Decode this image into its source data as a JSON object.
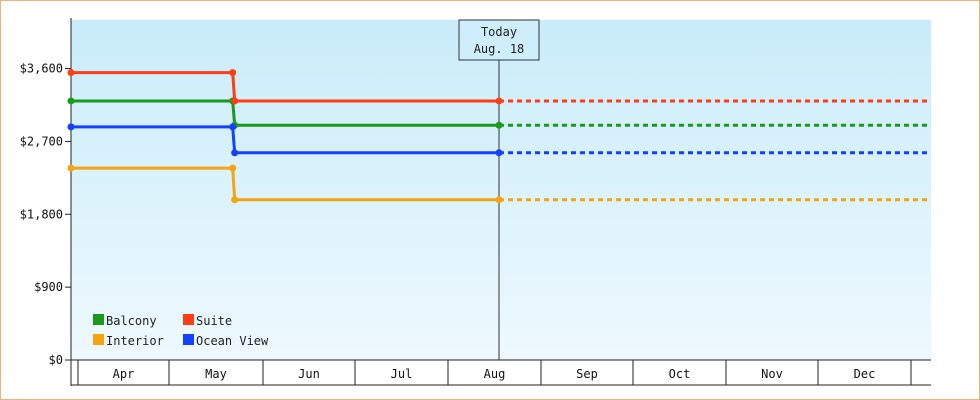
{
  "chart_data": {
    "type": "line",
    "step": true,
    "x_unit": "month",
    "categories": [
      "Apr",
      "May",
      "Jun",
      "Jul",
      "Aug",
      "Sep",
      "Oct",
      "Nov",
      "Dec"
    ],
    "y_ticks": [
      "$0",
      "$900",
      "$1,800",
      "$2,700",
      "$3,600"
    ],
    "y_tick_values": [
      0,
      900,
      1800,
      2700,
      3600
    ],
    "ylim": [
      0,
      4200
    ],
    "today_marker": {
      "line1": "Today",
      "line2": "Aug. 18",
      "x": "Aug 18"
    },
    "projection_after_today": "dotted",
    "series": [
      {
        "name": "Balcony",
        "color": "#1a9a1a",
        "points": [
          {
            "x": "Apr 1",
            "y": 3200
          },
          {
            "x": "May 22",
            "y": 3200
          },
          {
            "x": "May 22",
            "y": 2900
          },
          {
            "x": "Aug 18",
            "y": 2900
          }
        ]
      },
      {
        "name": "Suite",
        "color": "#ff3c14",
        "points": [
          {
            "x": "Apr 1",
            "y": 3550
          },
          {
            "x": "May 22",
            "y": 3550
          },
          {
            "x": "May 22",
            "y": 3200
          },
          {
            "x": "Aug 18",
            "y": 3200
          }
        ]
      },
      {
        "name": "Interior",
        "color": "#f5a30f",
        "points": [
          {
            "x": "Apr 1",
            "y": 2370
          },
          {
            "x": "May 22",
            "y": 2370
          },
          {
            "x": "May 22",
            "y": 1980
          },
          {
            "x": "Aug 18",
            "y": 1980
          }
        ]
      },
      {
        "name": "Ocean View",
        "color": "#1440ff",
        "points": [
          {
            "x": "Apr 1",
            "y": 2880
          },
          {
            "x": "May 22",
            "y": 2880
          },
          {
            "x": "May 22",
            "y": 2560
          },
          {
            "x": "Aug 18",
            "y": 2560
          }
        ]
      }
    ],
    "legend": {
      "placement": "bottom-left",
      "order": [
        "Balcony",
        "Suite",
        "Interior",
        "Ocean View"
      ]
    },
    "grid": false,
    "background": {
      "top": "#c9ecfa",
      "bottom": "#eef9fe"
    }
  }
}
